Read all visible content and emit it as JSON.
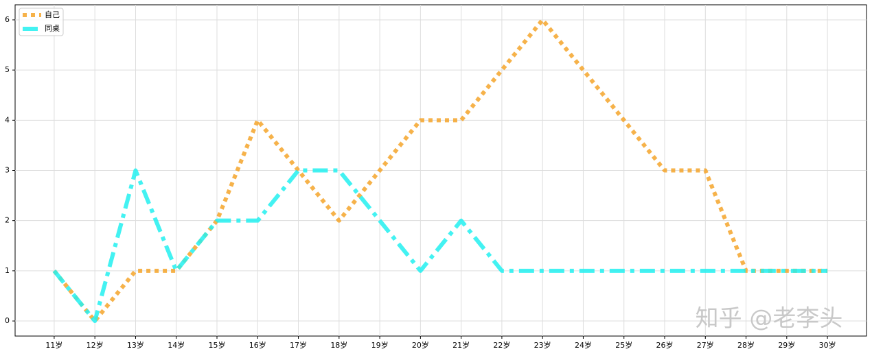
{
  "chart_data": {
    "type": "line",
    "categories": [
      "11岁",
      "12岁",
      "13岁",
      "14岁",
      "15岁",
      "16岁",
      "17岁",
      "18岁",
      "19岁",
      "20岁",
      "21岁",
      "22岁",
      "23岁",
      "24岁",
      "25岁",
      "26岁",
      "27岁",
      "28岁",
      "29岁",
      "30岁"
    ],
    "series": [
      {
        "name": "自己",
        "color": "#f4a52a",
        "linestyle": "dotted",
        "values": [
          1,
          0,
          1,
          1,
          2,
          4,
          3,
          2,
          3,
          4,
          4,
          5,
          6,
          5,
          4,
          3,
          3,
          1,
          1,
          1
        ]
      },
      {
        "name": "同桌",
        "color": "#22f0f0",
        "linestyle": "dashdot",
        "values": [
          1,
          0,
          3,
          1,
          2,
          2,
          3,
          3,
          2,
          1,
          2,
          1,
          1,
          1,
          1,
          1,
          1,
          1,
          1,
          1
        ]
      }
    ],
    "ylim": [
      -0.3,
      6.3
    ],
    "yticks": [
      0,
      1,
      2,
      3,
      4,
      5,
      6
    ],
    "grid": true,
    "legend": "upper left",
    "watermark": "知乎 @老李头"
  }
}
